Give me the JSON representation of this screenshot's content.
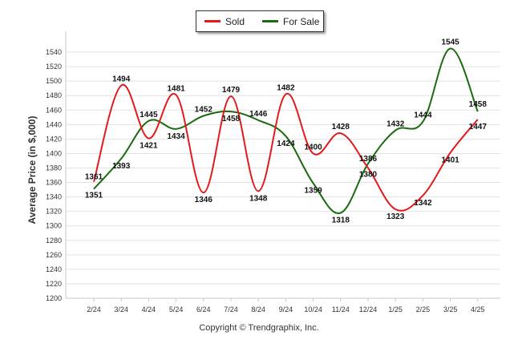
{
  "legend": {
    "sold": "Sold",
    "for_sale": "For Sale"
  },
  "copyright": "Copyright © Trendgraphix, Inc.",
  "chart_data": {
    "type": "line",
    "xlabel": "",
    "ylabel": "Average Price (in $,000)",
    "categories": [
      "2/24",
      "3/24",
      "4/24",
      "5/24",
      "6/24",
      "7/24",
      "8/24",
      "9/24",
      "10/24",
      "11/24",
      "12/24",
      "1/25",
      "2/25",
      "3/25",
      "4/25"
    ],
    "ylim": [
      1200,
      1560
    ],
    "yticks": [
      1200,
      1220,
      1240,
      1260,
      1280,
      1300,
      1320,
      1340,
      1360,
      1380,
      1400,
      1420,
      1440,
      1460,
      1480,
      1500,
      1520,
      1540
    ],
    "grid": true,
    "legend_position": "top-center",
    "series": [
      {
        "name": "Sold",
        "color": "#e31a1c",
        "values": [
          1361,
          1494,
          1421,
          1481,
          1346,
          1479,
          1348,
          1482,
          1400,
          1428,
          1380,
          1323,
          1342,
          1401,
          1447
        ]
      },
      {
        "name": "For Sale",
        "color": "#1a6b10",
        "values": [
          1351,
          1393,
          1445,
          1434,
          1452,
          1458,
          1446,
          1424,
          1359,
          1318,
          1386,
          1432,
          1444,
          1545,
          1458
        ]
      }
    ]
  }
}
